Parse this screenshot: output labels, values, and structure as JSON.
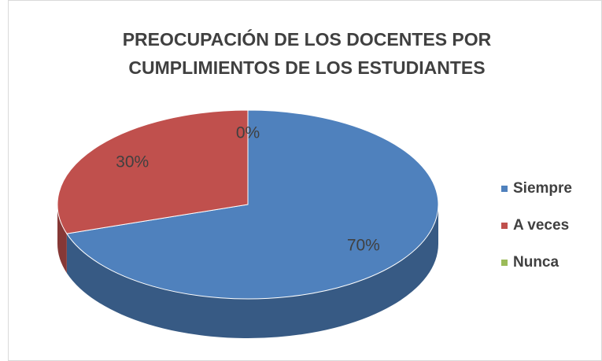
{
  "chart_data": {
    "type": "pie3d",
    "title": [
      "PREOCUPACIÓN DE LOS DOCENTES POR",
      "CUMPLIMIENTOS DE LOS ESTUDIANTES"
    ],
    "categories": [
      "Siempre",
      "A veces",
      "Nunca"
    ],
    "values": [
      70,
      30,
      0
    ],
    "value_labels": [
      "70%",
      "30%",
      "0%"
    ],
    "colors": [
      "#4f81bd",
      "#c0504d",
      "#9bbb59"
    ],
    "legend": "right"
  }
}
